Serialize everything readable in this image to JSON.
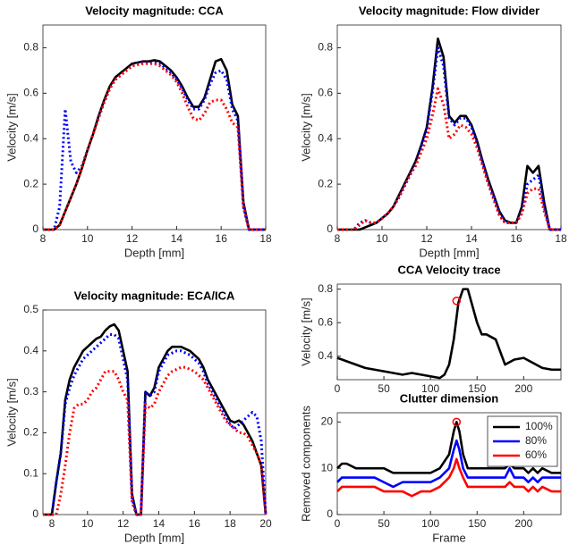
{
  "chart_data": [
    {
      "type": "line",
      "title": "Velocity magnitude: CCA",
      "x_label": "Depth [mm]",
      "y_label": "Velocity [m/s]",
      "xlim": [
        8,
        18
      ],
      "xticks": [
        8,
        10,
        12,
        14,
        16,
        18
      ],
      "ylim": [
        0,
        0.9
      ],
      "yticks": [
        0,
        0.2,
        0.4,
        0.6,
        0.8
      ],
      "x": [
        8,
        8.25,
        8.5,
        8.75,
        9,
        9.25,
        9.5,
        9.75,
        10,
        10.25,
        10.5,
        10.75,
        11,
        11.25,
        11.5,
        11.75,
        12,
        12.25,
        12.5,
        12.75,
        13,
        13.25,
        13.5,
        13.75,
        14,
        14.25,
        14.5,
        14.75,
        15,
        15.25,
        15.5,
        15.75,
        16,
        16.25,
        16.5,
        16.75,
        17,
        17.25,
        17.5,
        17.75,
        18
      ],
      "series": [
        {
          "color": "#000000",
          "style": "solid",
          "values": [
            0,
            0,
            0,
            0.02,
            0.08,
            0.14,
            0.2,
            0.27,
            0.35,
            0.42,
            0.5,
            0.57,
            0.63,
            0.67,
            0.69,
            0.71,
            0.73,
            0.735,
            0.74,
            0.74,
            0.745,
            0.74,
            0.72,
            0.7,
            0.67,
            0.63,
            0.58,
            0.54,
            0.54,
            0.58,
            0.66,
            0.74,
            0.75,
            0.7,
            0.55,
            0.5,
            0.12,
            0,
            0,
            0,
            0
          ]
        },
        {
          "color": "#0000ff",
          "style": "dotted",
          "values": [
            0,
            0,
            0,
            0.1,
            0.53,
            0.3,
            0.25,
            0.28,
            0.35,
            0.42,
            0.5,
            0.56,
            0.62,
            0.66,
            0.68,
            0.7,
            0.72,
            0.73,
            0.735,
            0.735,
            0.735,
            0.73,
            0.71,
            0.69,
            0.66,
            0.62,
            0.57,
            0.53,
            0.53,
            0.57,
            0.64,
            0.69,
            0.7,
            0.66,
            0.53,
            0.48,
            0.1,
            0,
            0,
            0,
            0
          ]
        },
        {
          "color": "#ff0000",
          "style": "dotted",
          "values": [
            0,
            0,
            0,
            0.02,
            0.08,
            0.14,
            0.2,
            0.27,
            0.35,
            0.42,
            0.49,
            0.56,
            0.62,
            0.66,
            0.68,
            0.7,
            0.72,
            0.725,
            0.73,
            0.73,
            0.73,
            0.72,
            0.7,
            0.68,
            0.65,
            0.6,
            0.54,
            0.49,
            0.48,
            0.51,
            0.56,
            0.57,
            0.57,
            0.53,
            0.47,
            0.45,
            0.1,
            0,
            0,
            0,
            0
          ]
        }
      ]
    },
    {
      "type": "line",
      "title": "Velocity magnitude: Flow divider",
      "x_label": "Depth [mm]",
      "y_label": "Velocity [m/s]",
      "xlim": [
        8,
        18
      ],
      "xticks": [
        8,
        10,
        12,
        14,
        16,
        18
      ],
      "ylim": [
        0,
        0.9
      ],
      "yticks": [
        0,
        0.2,
        0.4,
        0.6,
        0.8
      ],
      "x": [
        8,
        8.25,
        8.5,
        8.75,
        9,
        9.25,
        9.5,
        9.75,
        10,
        10.25,
        10.5,
        10.75,
        11,
        11.25,
        11.5,
        11.75,
        12,
        12.25,
        12.5,
        12.75,
        13,
        13.25,
        13.5,
        13.75,
        14,
        14.25,
        14.5,
        14.75,
        15,
        15.25,
        15.5,
        15.75,
        16,
        16.25,
        16.5,
        16.75,
        17,
        17.25,
        17.5,
        17.75,
        18
      ],
      "series": [
        {
          "color": "#000000",
          "style": "solid",
          "values": [
            0,
            0,
            0,
            0,
            0,
            0.01,
            0.02,
            0.03,
            0.05,
            0.07,
            0.1,
            0.15,
            0.2,
            0.25,
            0.3,
            0.37,
            0.45,
            0.62,
            0.84,
            0.76,
            0.5,
            0.47,
            0.5,
            0.5,
            0.46,
            0.39,
            0.3,
            0.22,
            0.15,
            0.08,
            0.04,
            0.03,
            0.03,
            0.1,
            0.28,
            0.25,
            0.28,
            0.12,
            0,
            0,
            0
          ]
        },
        {
          "color": "#0000ff",
          "style": "dotted",
          "values": [
            0,
            0,
            0,
            0,
            0.03,
            0.04,
            0.03,
            0.03,
            0.05,
            0.07,
            0.1,
            0.14,
            0.19,
            0.24,
            0.29,
            0.36,
            0.44,
            0.6,
            0.8,
            0.72,
            0.49,
            0.46,
            0.49,
            0.49,
            0.45,
            0.38,
            0.29,
            0.21,
            0.14,
            0.07,
            0.03,
            0.03,
            0.03,
            0.08,
            0.2,
            0.22,
            0.24,
            0.1,
            0,
            0,
            0
          ]
        },
        {
          "color": "#ff0000",
          "style": "dotted",
          "values": [
            0,
            0,
            0,
            0,
            0.02,
            0.04,
            0.03,
            0.03,
            0.05,
            0.07,
            0.1,
            0.14,
            0.19,
            0.24,
            0.28,
            0.34,
            0.4,
            0.5,
            0.62,
            0.55,
            0.4,
            0.42,
            0.46,
            0.45,
            0.42,
            0.36,
            0.28,
            0.2,
            0.13,
            0.06,
            0.03,
            0.03,
            0.03,
            0.07,
            0.16,
            0.18,
            0.18,
            0.08,
            0,
            0,
            0
          ]
        }
      ]
    },
    {
      "type": "line",
      "title": "Velocity magnitude: ECA/ICA",
      "x_label": "Depth [mm]",
      "y_label": "Velocity [m/s]",
      "xlim": [
        7.5,
        20
      ],
      "xticks": [
        8,
        10,
        12,
        14,
        16,
        18,
        20
      ],
      "ylim": [
        0,
        0.5
      ],
      "yticks": [
        0,
        0.1,
        0.2,
        0.3,
        0.4,
        0.5
      ],
      "x": [
        7.5,
        7.75,
        8,
        8.25,
        8.5,
        8.75,
        9,
        9.25,
        9.5,
        9.75,
        10,
        10.25,
        10.5,
        10.75,
        11,
        11.25,
        11.5,
        11.75,
        12,
        12.25,
        12.5,
        12.75,
        13,
        13.25,
        13.5,
        13.75,
        14,
        14.25,
        14.5,
        14.75,
        15,
        15.25,
        15.5,
        15.75,
        16,
        16.25,
        16.5,
        16.75,
        17,
        17.25,
        17.5,
        17.75,
        18,
        18.25,
        18.5,
        18.75,
        19,
        19.25,
        19.5,
        19.75,
        20
      ],
      "series": [
        {
          "color": "#000000",
          "style": "solid",
          "values": [
            0,
            0,
            0,
            0.08,
            0.15,
            0.28,
            0.33,
            0.36,
            0.38,
            0.4,
            0.41,
            0.42,
            0.43,
            0.435,
            0.45,
            0.46,
            0.465,
            0.45,
            0.4,
            0.35,
            0.05,
            0,
            0,
            0.3,
            0.29,
            0.31,
            0.36,
            0.38,
            0.4,
            0.41,
            0.41,
            0.41,
            0.405,
            0.4,
            0.39,
            0.38,
            0.36,
            0.33,
            0.31,
            0.29,
            0.27,
            0.25,
            0.23,
            0.225,
            0.23,
            0.22,
            0.2,
            0.18,
            0.15,
            0.12,
            0
          ]
        },
        {
          "color": "#0000ff",
          "style": "dotted",
          "values": [
            0,
            0,
            0,
            0.08,
            0.15,
            0.27,
            0.31,
            0.34,
            0.36,
            0.38,
            0.39,
            0.4,
            0.41,
            0.42,
            0.43,
            0.44,
            0.44,
            0.43,
            0.38,
            0.33,
            0.04,
            0,
            0,
            0.3,
            0.29,
            0.3,
            0.35,
            0.37,
            0.39,
            0.395,
            0.4,
            0.4,
            0.395,
            0.39,
            0.38,
            0.37,
            0.35,
            0.32,
            0.3,
            0.28,
            0.26,
            0.24,
            0.22,
            0.21,
            0.22,
            0.23,
            0.24,
            0.25,
            0.24,
            0.18,
            0
          ]
        },
        {
          "color": "#ff0000",
          "style": "dotted",
          "values": [
            0,
            0,
            0,
            0,
            0.05,
            0.12,
            0.2,
            0.26,
            0.27,
            0.27,
            0.28,
            0.3,
            0.31,
            0.33,
            0.35,
            0.35,
            0.35,
            0.33,
            0.3,
            0.28,
            0.03,
            0,
            0,
            0.27,
            0.26,
            0.27,
            0.3,
            0.32,
            0.34,
            0.35,
            0.355,
            0.36,
            0.36,
            0.355,
            0.35,
            0.34,
            0.33,
            0.31,
            0.29,
            0.27,
            0.25,
            0.23,
            0.22,
            0.21,
            0.2,
            0.2,
            0.19,
            0.17,
            0.15,
            0.12,
            0
          ]
        }
      ]
    },
    {
      "type": "line",
      "title": "CCA Velocity trace",
      "y_label": "Velocity [m/s]",
      "xlim": [
        0,
        240
      ],
      "xticks": [
        0,
        50,
        100,
        150,
        200
      ],
      "ylim": [
        0.26,
        0.83
      ],
      "yticks": [
        0.4,
        0.6,
        0.8
      ],
      "x": [
        0,
        10,
        20,
        30,
        40,
        50,
        60,
        70,
        80,
        90,
        100,
        110,
        115,
        120,
        125,
        130,
        135,
        140,
        145,
        150,
        155,
        160,
        170,
        180,
        190,
        200,
        210,
        220,
        230,
        240
      ],
      "series": [
        {
          "color": "#000000",
          "style": "solid",
          "values": [
            0.39,
            0.37,
            0.35,
            0.33,
            0.32,
            0.31,
            0.3,
            0.29,
            0.3,
            0.29,
            0.28,
            0.27,
            0.29,
            0.35,
            0.5,
            0.72,
            0.8,
            0.8,
            0.7,
            0.6,
            0.53,
            0.53,
            0.5,
            0.35,
            0.38,
            0.39,
            0.36,
            0.33,
            0.32,
            0.32
          ]
        },
        {
          "color": "#ff0000",
          "style": "marker",
          "x": [
            128
          ],
          "values": [
            0.73
          ]
        }
      ]
    },
    {
      "type": "line",
      "title": "Clutter dimension",
      "x_label": "Frame",
      "y_label": "Removed components",
      "xlim": [
        0,
        240
      ],
      "xticks": [
        0,
        50,
        100,
        150,
        200
      ],
      "ylim": [
        0,
        22
      ],
      "yticks": [
        0,
        10,
        20
      ],
      "legend": "upper right",
      "x": [
        0,
        5,
        10,
        20,
        30,
        40,
        50,
        60,
        70,
        80,
        90,
        100,
        110,
        120,
        125,
        128,
        131,
        135,
        140,
        150,
        160,
        170,
        180,
        185,
        190,
        200,
        205,
        210,
        215,
        220,
        230,
        240
      ],
      "series": [
        {
          "name": "100%",
          "color": "#000000",
          "style": "solid",
          "values": [
            10,
            11,
            11,
            10,
            10,
            10,
            10,
            9,
            9,
            9,
            9,
            9,
            10,
            13,
            18,
            20,
            18,
            13,
            10,
            10,
            10,
            10,
            10,
            11,
            10,
            10,
            9,
            10,
            9,
            10,
            9,
            9
          ]
        },
        {
          "name": "80%",
          "color": "#0000ff",
          "style": "solid",
          "values": [
            7,
            8,
            8,
            8,
            8,
            8,
            7,
            6,
            7,
            7,
            7,
            7,
            8,
            10,
            14,
            16,
            14,
            10,
            8,
            8,
            8,
            8,
            8,
            10,
            8,
            8,
            7,
            8,
            7,
            8,
            8,
            8
          ]
        },
        {
          "name": "60%",
          "color": "#ff0000",
          "style": "solid",
          "values": [
            5,
            6,
            6,
            6,
            6,
            6,
            5,
            5,
            5,
            4,
            5,
            5,
            6,
            8,
            10,
            12,
            10,
            8,
            6,
            6,
            6,
            6,
            6,
            7,
            6,
            6,
            5,
            6,
            5,
            6,
            5,
            5
          ]
        },
        {
          "color": "#ff0000",
          "style": "marker",
          "x": [
            128
          ],
          "values": [
            20
          ]
        }
      ]
    }
  ]
}
